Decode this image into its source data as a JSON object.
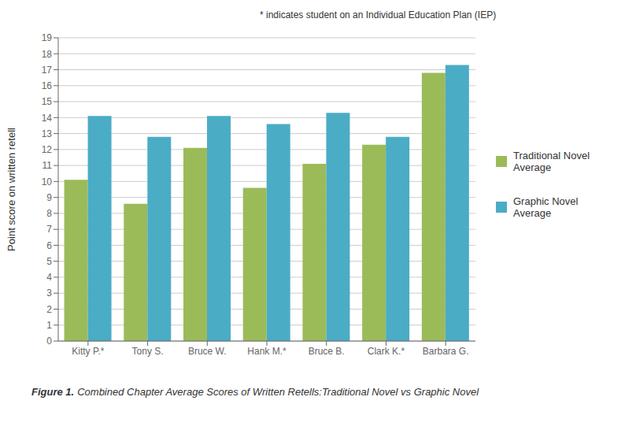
{
  "chart_data": {
    "type": "bar",
    "categories": [
      "Kitty P.*",
      "Tony S.",
      "Bruce W.",
      "Hank M.*",
      "Bruce B.",
      "Clark K.*",
      "Barbara G."
    ],
    "series": [
      {
        "name": "Traditional Novel\nAverage",
        "color": "#9BBB59",
        "values": [
          10.1,
          8.6,
          12.1,
          9.6,
          11.1,
          12.3,
          16.8
        ]
      },
      {
        "name": "Graphic Novel\nAverage",
        "color": "#4BACC6",
        "values": [
          14.1,
          12.8,
          14.1,
          13.6,
          14.3,
          12.8,
          17.3
        ]
      }
    ],
    "ylabel": "Point score on written retell",
    "ylim": [
      0,
      19
    ],
    "yticks": [
      0,
      1,
      2,
      3,
      4,
      5,
      6,
      7,
      8,
      9,
      10,
      11,
      12,
      13,
      14,
      15,
      16,
      17,
      18,
      19
    ],
    "grid": true,
    "legend": "right",
    "annotation": "* indicates student on an Individual Education Plan (IEP)",
    "caption_label": "Figure 1.",
    "caption": "Combined Chapter Average Scores of Written Retells:Traditional Novel vs Graphic Novel"
  }
}
